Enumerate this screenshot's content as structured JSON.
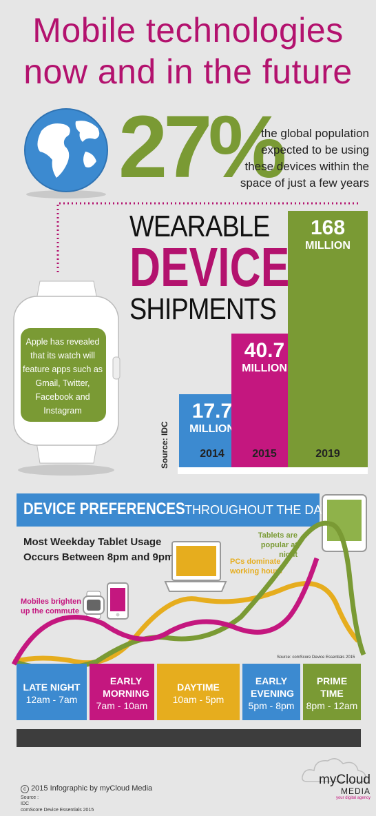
{
  "header": {
    "title_line1": "Mobile technologies",
    "title_line2": "now and in the future"
  },
  "stat": {
    "percent": "27%",
    "text_lines": [
      "the global population",
      "expected to be using",
      "these devices within the",
      "space of just a few years"
    ]
  },
  "wearable": {
    "title1": "WEARABLE",
    "title2": "DEVICE",
    "title3": "SHIPMENTS",
    "source": "Source: IDC",
    "bars": [
      {
        "year": "2014",
        "value": "17.7",
        "unit": "MILLION",
        "color": "#3c8ad0",
        "amount": 17.7
      },
      {
        "year": "2015",
        "value": "40.7",
        "unit": "MILLION",
        "color": "#c4177f",
        "amount": 40.7
      },
      {
        "year": "2019",
        "value": "168",
        "unit": "MILLION",
        "color": "#7a9a34",
        "amount": 168
      }
    ]
  },
  "watch": {
    "text": "Apple has revealed that its watch will feature apps such as Gmail, Twitter, Facebook and Instagram"
  },
  "prefs": {
    "banner_bold": "DEVICE PREFERENCES",
    "banner_rest": "THROUGHOUT THE DAY",
    "usage_line1": "Most Weekday Tablet Usage",
    "usage_line2": "Occurs Between 8pm and 9pm",
    "tablets_note1": "Tablets are",
    "tablets_note2": "popular at night",
    "pcs_note1": "PCs dominate",
    "pcs_note2": "working hours",
    "mobiles_note1": "Mobiles brighten",
    "mobiles_note2": "up the commute",
    "source": "Source: comScore Device Essentials 2015",
    "slots": [
      {
        "name": "LATE NIGHT",
        "time": "12am - 7am",
        "color": "#3c8ad0"
      },
      {
        "name": "EARLY MORNING",
        "time": "7am - 10am",
        "color": "#c4177f"
      },
      {
        "name": "DAYTIME",
        "time": "10am - 5pm",
        "color": "#e6ad1e"
      },
      {
        "name": "EARLY EVENING",
        "time": "5pm - 8pm",
        "color": "#3c8ad0"
      },
      {
        "name": "PRIME TIME",
        "time": "8pm - 12am",
        "color": "#7a9a34"
      }
    ]
  },
  "footer": {
    "copyright": "2015 Infographic by myCloud Media",
    "source_label": "Source :",
    "source1": "IDC",
    "source2": "comScore Device Essentials 2015",
    "logo_main": "myCloud",
    "logo_sub": "MEDIA",
    "logo_tag": "your digital agency"
  },
  "colors": {
    "magenta": "#b3126e",
    "green": "#7a9a34",
    "blue": "#3c8ad0",
    "yellow": "#e6ad1e"
  }
}
